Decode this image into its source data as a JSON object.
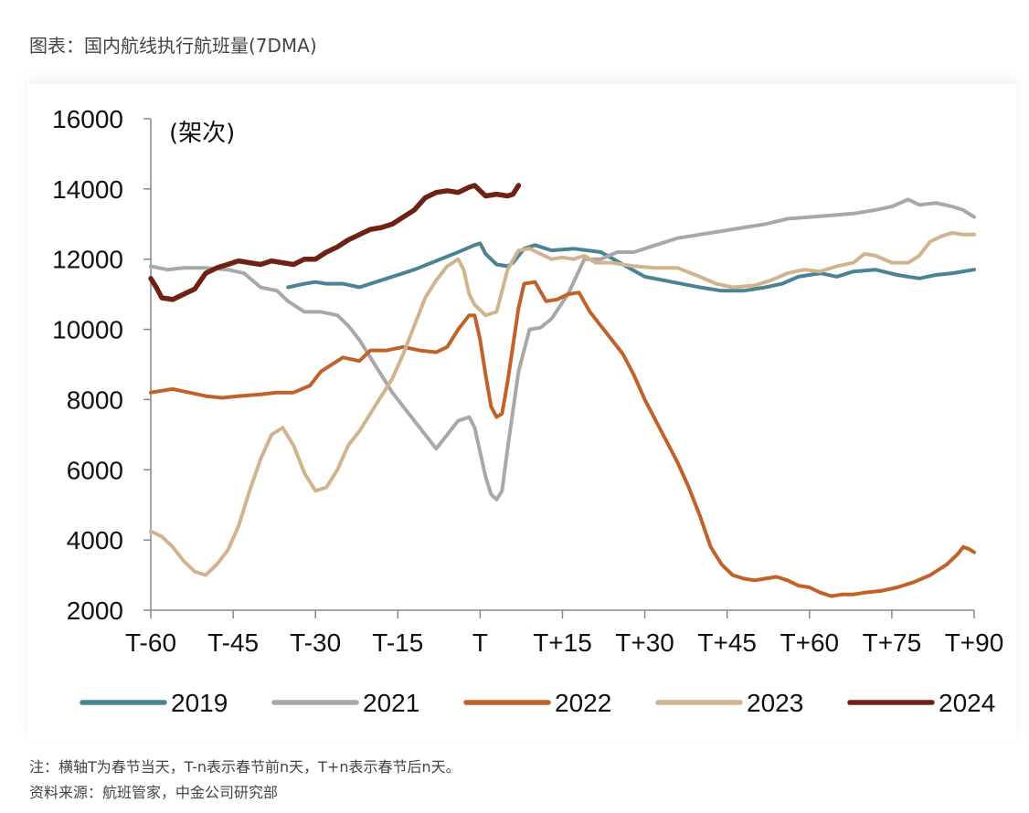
{
  "caption": "图表：国内航线执行航班量(7DMA)",
  "chart_data": {
    "type": "line",
    "unit_label": "(架次)",
    "x_ticks": [
      "T-60",
      "T-45",
      "T-30",
      "T-15",
      "T",
      "T+15",
      "T+30",
      "T+45",
      "T+60",
      "T+75",
      "T+90"
    ],
    "y_ticks": [
      2000,
      4000,
      6000,
      8000,
      10000,
      12000,
      14000,
      16000
    ],
    "ylim": [
      2000,
      16000
    ],
    "xlim": [
      -60,
      90
    ],
    "legend_position": "bottom",
    "series": [
      {
        "name": "2019",
        "color": "#4a8394",
        "width": 4,
        "points": [
          [
            -35,
            11200
          ],
          [
            -32,
            11300
          ],
          [
            -30,
            11350
          ],
          [
            -28,
            11300
          ],
          [
            -25,
            11300
          ],
          [
            -22,
            11200
          ],
          [
            -19,
            11350
          ],
          [
            -15,
            11550
          ],
          [
            -12,
            11700
          ],
          [
            -8,
            11950
          ],
          [
            -4,
            12200
          ],
          [
            -1,
            12400
          ],
          [
            0,
            12450
          ],
          [
            1,
            12150
          ],
          [
            3,
            11850
          ],
          [
            5,
            11800
          ],
          [
            6,
            11900
          ],
          [
            8,
            12300
          ],
          [
            10,
            12400
          ],
          [
            13,
            12250
          ],
          [
            17,
            12300
          ],
          [
            22,
            12200
          ],
          [
            26,
            11850
          ],
          [
            30,
            11500
          ],
          [
            35,
            11350
          ],
          [
            40,
            11200
          ],
          [
            44,
            11100
          ],
          [
            48,
            11100
          ],
          [
            52,
            11200
          ],
          [
            55,
            11300
          ],
          [
            58,
            11500
          ],
          [
            62,
            11600
          ],
          [
            65,
            11500
          ],
          [
            68,
            11650
          ],
          [
            72,
            11700
          ],
          [
            76,
            11550
          ],
          [
            80,
            11450
          ],
          [
            83,
            11550
          ],
          [
            86,
            11600
          ],
          [
            90,
            11700
          ]
        ]
      },
      {
        "name": "2021",
        "color": "#a8a8a8",
        "width": 4,
        "points": [
          [
            -60,
            11800
          ],
          [
            -57,
            11700
          ],
          [
            -54,
            11750
          ],
          [
            -50,
            11750
          ],
          [
            -46,
            11700
          ],
          [
            -43,
            11600
          ],
          [
            -40,
            11200
          ],
          [
            -37,
            11100
          ],
          [
            -35,
            10800
          ],
          [
            -32,
            10500
          ],
          [
            -29,
            10500
          ],
          [
            -26,
            10400
          ],
          [
            -24,
            10100
          ],
          [
            -22,
            9700
          ],
          [
            -20,
            9200
          ],
          [
            -18,
            8700
          ],
          [
            -16,
            8200
          ],
          [
            -13,
            7600
          ],
          [
            -10,
            7000
          ],
          [
            -8,
            6600
          ],
          [
            -6,
            7000
          ],
          [
            -4,
            7400
          ],
          [
            -2,
            7500
          ],
          [
            -1,
            7200
          ],
          [
            1,
            5800
          ],
          [
            2,
            5300
          ],
          [
            3,
            5150
          ],
          [
            4,
            5400
          ],
          [
            5,
            6600
          ],
          [
            7,
            8800
          ],
          [
            9,
            10000
          ],
          [
            11,
            10050
          ],
          [
            13,
            10300
          ],
          [
            16,
            11000
          ],
          [
            19,
            12000
          ],
          [
            22,
            12000
          ],
          [
            25,
            12200
          ],
          [
            28,
            12200
          ],
          [
            32,
            12400
          ],
          [
            36,
            12600
          ],
          [
            40,
            12700
          ],
          [
            44,
            12800
          ],
          [
            48,
            12900
          ],
          [
            52,
            13000
          ],
          [
            56,
            13150
          ],
          [
            60,
            13200
          ],
          [
            64,
            13250
          ],
          [
            68,
            13300
          ],
          [
            72,
            13400
          ],
          [
            75,
            13500
          ],
          [
            78,
            13700
          ],
          [
            80,
            13550
          ],
          [
            83,
            13600
          ],
          [
            86,
            13500
          ],
          [
            88,
            13400
          ],
          [
            90,
            13200
          ]
        ]
      },
      {
        "name": "2022",
        "color": "#c0622a",
        "width": 4,
        "points": [
          [
            -60,
            8200
          ],
          [
            -56,
            8300
          ],
          [
            -53,
            8200
          ],
          [
            -50,
            8100
          ],
          [
            -47,
            8050
          ],
          [
            -44,
            8100
          ],
          [
            -40,
            8150
          ],
          [
            -37,
            8200
          ],
          [
            -34,
            8200
          ],
          [
            -31,
            8400
          ],
          [
            -29,
            8800
          ],
          [
            -27,
            9000
          ],
          [
            -25,
            9200
          ],
          [
            -22,
            9100
          ],
          [
            -20,
            9400
          ],
          [
            -17,
            9400
          ],
          [
            -14,
            9500
          ],
          [
            -11,
            9400
          ],
          [
            -8,
            9350
          ],
          [
            -6,
            9500
          ],
          [
            -4,
            10000
          ],
          [
            -2,
            10400
          ],
          [
            -1,
            10400
          ],
          [
            0,
            9700
          ],
          [
            1,
            8700
          ],
          [
            2,
            7800
          ],
          [
            3,
            7500
          ],
          [
            4,
            7600
          ],
          [
            5,
            8500
          ],
          [
            7,
            10600
          ],
          [
            8,
            11300
          ],
          [
            10,
            11350
          ],
          [
            12,
            10800
          ],
          [
            14,
            10850
          ],
          [
            16,
            11000
          ],
          [
            18,
            11050
          ],
          [
            20,
            10500
          ],
          [
            22,
            10100
          ],
          [
            24,
            9700
          ],
          [
            26,
            9300
          ],
          [
            28,
            8700
          ],
          [
            30,
            8000
          ],
          [
            32,
            7400
          ],
          [
            34,
            6800
          ],
          [
            36,
            6200
          ],
          [
            38,
            5500
          ],
          [
            40,
            4700
          ],
          [
            42,
            3800
          ],
          [
            44,
            3300
          ],
          [
            46,
            3000
          ],
          [
            48,
            2900
          ],
          [
            50,
            2850
          ],
          [
            52,
            2900
          ],
          [
            54,
            2950
          ],
          [
            56,
            2850
          ],
          [
            58,
            2700
          ],
          [
            60,
            2650
          ],
          [
            62,
            2500
          ],
          [
            64,
            2400
          ],
          [
            66,
            2450
          ],
          [
            68,
            2450
          ],
          [
            70,
            2500
          ],
          [
            73,
            2550
          ],
          [
            76,
            2650
          ],
          [
            79,
            2800
          ],
          [
            82,
            3000
          ],
          [
            85,
            3300
          ],
          [
            87,
            3600
          ],
          [
            88,
            3800
          ],
          [
            89,
            3750
          ],
          [
            90,
            3650
          ]
        ]
      },
      {
        "name": "2023",
        "color": "#cfb48e",
        "width": 4,
        "points": [
          [
            -60,
            4250
          ],
          [
            -58,
            4100
          ],
          [
            -56,
            3800
          ],
          [
            -54,
            3400
          ],
          [
            -52,
            3100
          ],
          [
            -50,
            3000
          ],
          [
            -48,
            3300
          ],
          [
            -46,
            3700
          ],
          [
            -44,
            4400
          ],
          [
            -42,
            5400
          ],
          [
            -40,
            6300
          ],
          [
            -38,
            7000
          ],
          [
            -36,
            7200
          ],
          [
            -34,
            6700
          ],
          [
            -32,
            5900
          ],
          [
            -30,
            5400
          ],
          [
            -28,
            5500
          ],
          [
            -26,
            6000
          ],
          [
            -24,
            6700
          ],
          [
            -22,
            7100
          ],
          [
            -20,
            7600
          ],
          [
            -18,
            8100
          ],
          [
            -16,
            8600
          ],
          [
            -14,
            9300
          ],
          [
            -12,
            10100
          ],
          [
            -10,
            10900
          ],
          [
            -8,
            11400
          ],
          [
            -6,
            11800
          ],
          [
            -4,
            12000
          ],
          [
            -3,
            11700
          ],
          [
            -2,
            11000
          ],
          [
            -1,
            10700
          ],
          [
            1,
            10400
          ],
          [
            3,
            10500
          ],
          [
            5,
            11700
          ],
          [
            7,
            12250
          ],
          [
            9,
            12300
          ],
          [
            11,
            12150
          ],
          [
            13,
            12000
          ],
          [
            15,
            12050
          ],
          [
            17,
            12000
          ],
          [
            19,
            12100
          ],
          [
            21,
            11900
          ],
          [
            24,
            11900
          ],
          [
            28,
            11800
          ],
          [
            32,
            11750
          ],
          [
            36,
            11750
          ],
          [
            40,
            11500
          ],
          [
            43,
            11300
          ],
          [
            46,
            11200
          ],
          [
            50,
            11250
          ],
          [
            53,
            11400
          ],
          [
            56,
            11600
          ],
          [
            59,
            11700
          ],
          [
            62,
            11650
          ],
          [
            65,
            11800
          ],
          [
            68,
            11900
          ],
          [
            70,
            12150
          ],
          [
            72,
            12100
          ],
          [
            75,
            11900
          ],
          [
            78,
            11900
          ],
          [
            80,
            12100
          ],
          [
            82,
            12500
          ],
          [
            84,
            12650
          ],
          [
            86,
            12750
          ],
          [
            88,
            12700
          ],
          [
            90,
            12700
          ]
        ]
      },
      {
        "name": "2024",
        "color": "#6e2214",
        "width": 5.5,
        "points": [
          [
            -60,
            11450
          ],
          [
            -59,
            11200
          ],
          [
            -58,
            10900
          ],
          [
            -56,
            10850
          ],
          [
            -54,
            11000
          ],
          [
            -52,
            11150
          ],
          [
            -50,
            11600
          ],
          [
            -48,
            11750
          ],
          [
            -46,
            11850
          ],
          [
            -44,
            11950
          ],
          [
            -42,
            11900
          ],
          [
            -40,
            11850
          ],
          [
            -38,
            11950
          ],
          [
            -36,
            11900
          ],
          [
            -34,
            11850
          ],
          [
            -32,
            12000
          ],
          [
            -30,
            12000
          ],
          [
            -28,
            12200
          ],
          [
            -26,
            12350
          ],
          [
            -24,
            12550
          ],
          [
            -22,
            12700
          ],
          [
            -20,
            12850
          ],
          [
            -18,
            12900
          ],
          [
            -16,
            13000
          ],
          [
            -14,
            13200
          ],
          [
            -12,
            13400
          ],
          [
            -10,
            13750
          ],
          [
            -8,
            13900
          ],
          [
            -6,
            13950
          ],
          [
            -4,
            13900
          ],
          [
            -2,
            14050
          ],
          [
            -1,
            14100
          ],
          [
            0,
            13950
          ],
          [
            1,
            13800
          ],
          [
            3,
            13850
          ],
          [
            5,
            13800
          ],
          [
            6,
            13850
          ],
          [
            7,
            14100
          ]
        ]
      }
    ],
    "legend": [
      "2019",
      "2021",
      "2022",
      "2023",
      "2024"
    ]
  },
  "notes": [
    "注：横轴T为春节当天，T-n表示春节前n天，T+n表示春节后n天。",
    "资料来源：航班管家，中金公司研究部"
  ]
}
